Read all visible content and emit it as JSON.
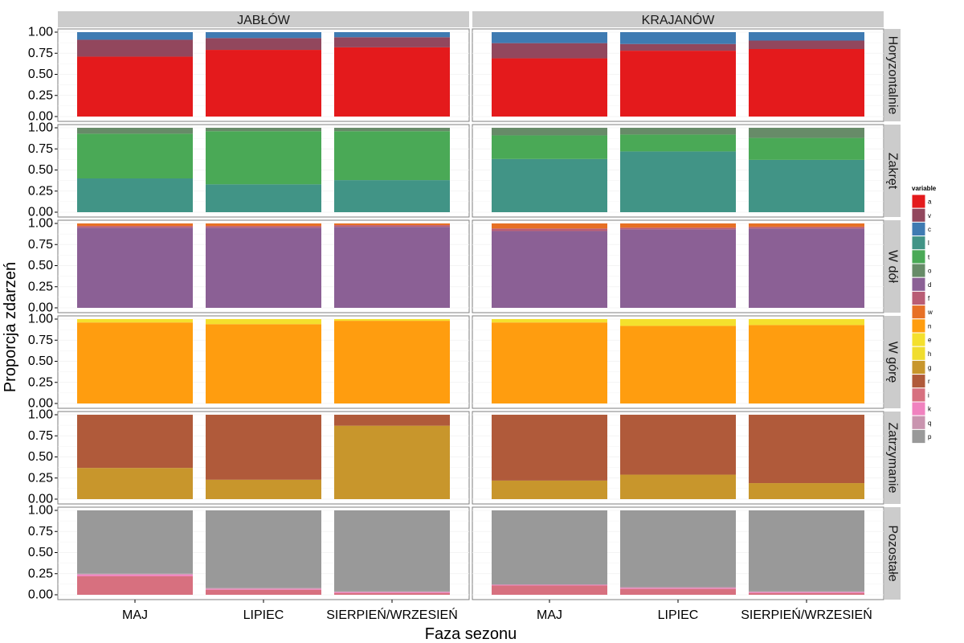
{
  "chart_data": {
    "type": "bar",
    "stacked": true,
    "faceted": true,
    "xlabel": "Faza sezonu",
    "ylabel": "Proporcja zdarzeń",
    "ylim": [
      0,
      1
    ],
    "yticks": [
      "0.00",
      "0.25",
      "0.50",
      "0.75",
      "1.00"
    ],
    "categories": [
      "MAJ",
      "LIPIEC",
      "SIERPIEŃ/WRZESIEŃ"
    ],
    "columns": [
      "JABŁÓW",
      "KRAJANÓW"
    ],
    "rows": [
      "Horyzontalnie",
      "Zakręt",
      "W dół",
      "W górę",
      "Zatrzymanie",
      "Pozostałe"
    ],
    "grid": true,
    "legend": {
      "title": "variable",
      "position": "right",
      "items": [
        {
          "key": "a",
          "color": "#E41A1C"
        },
        {
          "key": "v",
          "color": "#92475D"
        },
        {
          "key": "c",
          "color": "#3F7BB2"
        },
        {
          "key": "l",
          "color": "#419486"
        },
        {
          "key": "t",
          "color": "#4AA956"
        },
        {
          "key": "o",
          "color": "#678B68"
        },
        {
          "key": "d",
          "color": "#8B6095"
        },
        {
          "key": "f",
          "color": "#B95D75"
        },
        {
          "key": "w",
          "color": "#E77025"
        },
        {
          "key": "n",
          "color": "#FF9D0F"
        },
        {
          "key": "e",
          "color": "#F4E02D"
        },
        {
          "key": "h",
          "color": "#F0DD2E"
        },
        {
          "key": "g",
          "color": "#C8962C"
        },
        {
          "key": "r",
          "color": "#B05A3A"
        },
        {
          "key": "i",
          "color": "#D7707F"
        },
        {
          "key": "k",
          "color": "#F082BF"
        },
        {
          "key": "q",
          "color": "#C994AF"
        },
        {
          "key": "p",
          "color": "#999999"
        }
      ]
    },
    "panels": [
      {
        "row": "Horyzontalnie",
        "col": "JABŁÓW",
        "bars": [
          {
            "category": "MAJ",
            "segments": [
              {
                "var": "a",
                "value": 0.71
              },
              {
                "var": "v",
                "value": 0.2
              },
              {
                "var": "c",
                "value": 0.09
              }
            ]
          },
          {
            "category": "LIPIEC",
            "segments": [
              {
                "var": "a",
                "value": 0.79
              },
              {
                "var": "v",
                "value": 0.14
              },
              {
                "var": "c",
                "value": 0.07
              }
            ]
          },
          {
            "category": "SIERPIEŃ/WRZESIEŃ",
            "segments": [
              {
                "var": "a",
                "value": 0.82
              },
              {
                "var": "v",
                "value": 0.12
              },
              {
                "var": "c",
                "value": 0.06
              }
            ]
          }
        ]
      },
      {
        "row": "Horyzontalnie",
        "col": "KRAJANÓW",
        "bars": [
          {
            "category": "MAJ",
            "segments": [
              {
                "var": "a",
                "value": 0.69
              },
              {
                "var": "v",
                "value": 0.18
              },
              {
                "var": "c",
                "value": 0.13
              }
            ]
          },
          {
            "category": "LIPIEC",
            "segments": [
              {
                "var": "a",
                "value": 0.78
              },
              {
                "var": "v",
                "value": 0.08
              },
              {
                "var": "c",
                "value": 0.14
              }
            ]
          },
          {
            "category": "SIERPIEŃ/WRZESIEŃ",
            "segments": [
              {
                "var": "a",
                "value": 0.8
              },
              {
                "var": "v",
                "value": 0.1
              },
              {
                "var": "c",
                "value": 0.1
              }
            ]
          }
        ]
      },
      {
        "row": "Zakręt",
        "col": "JABŁÓW",
        "bars": [
          {
            "category": "MAJ",
            "segments": [
              {
                "var": "l",
                "value": 0.4
              },
              {
                "var": "t",
                "value": 0.53
              },
              {
                "var": "o",
                "value": 0.07
              }
            ]
          },
          {
            "category": "LIPIEC",
            "segments": [
              {
                "var": "l",
                "value": 0.33
              },
              {
                "var": "t",
                "value": 0.63
              },
              {
                "var": "o",
                "value": 0.04
              }
            ]
          },
          {
            "category": "SIERPIEŃ/WRZESIEŃ",
            "segments": [
              {
                "var": "l",
                "value": 0.38
              },
              {
                "var": "t",
                "value": 0.58
              },
              {
                "var": "o",
                "value": 0.04
              }
            ]
          }
        ]
      },
      {
        "row": "Zakręt",
        "col": "KRAJANÓW",
        "bars": [
          {
            "category": "MAJ",
            "segments": [
              {
                "var": "l",
                "value": 0.63
              },
              {
                "var": "t",
                "value": 0.28
              },
              {
                "var": "o",
                "value": 0.09
              }
            ]
          },
          {
            "category": "LIPIEC",
            "segments": [
              {
                "var": "l",
                "value": 0.72
              },
              {
                "var": "t",
                "value": 0.2
              },
              {
                "var": "o",
                "value": 0.08
              }
            ]
          },
          {
            "category": "SIERPIEŃ/WRZESIEŃ",
            "segments": [
              {
                "var": "l",
                "value": 0.62
              },
              {
                "var": "t",
                "value": 0.26
              },
              {
                "var": "o",
                "value": 0.12
              }
            ]
          }
        ]
      },
      {
        "row": "W dół",
        "col": "JABŁÓW",
        "bars": [
          {
            "category": "MAJ",
            "segments": [
              {
                "var": "d",
                "value": 0.95
              },
              {
                "var": "f",
                "value": 0.02
              },
              {
                "var": "w",
                "value": 0.03
              }
            ]
          },
          {
            "category": "LIPIEC",
            "segments": [
              {
                "var": "d",
                "value": 0.95
              },
              {
                "var": "f",
                "value": 0.02
              },
              {
                "var": "w",
                "value": 0.03
              }
            ]
          },
          {
            "category": "SIERPIEŃ/WRZESIEŃ",
            "segments": [
              {
                "var": "d",
                "value": 0.96
              },
              {
                "var": "f",
                "value": 0.02
              },
              {
                "var": "w",
                "value": 0.02
              }
            ]
          }
        ]
      },
      {
        "row": "W dół",
        "col": "KRAJANÓW",
        "bars": [
          {
            "category": "MAJ",
            "segments": [
              {
                "var": "d",
                "value": 0.91
              },
              {
                "var": "f",
                "value": 0.03
              },
              {
                "var": "w",
                "value": 0.06
              }
            ]
          },
          {
            "category": "LIPIEC",
            "segments": [
              {
                "var": "d",
                "value": 0.93
              },
              {
                "var": "f",
                "value": 0.02
              },
              {
                "var": "w",
                "value": 0.05
              }
            ]
          },
          {
            "category": "SIERPIEŃ/WRZESIEŃ",
            "segments": [
              {
                "var": "d",
                "value": 0.94
              },
              {
                "var": "f",
                "value": 0.02
              },
              {
                "var": "w",
                "value": 0.04
              }
            ]
          }
        ]
      },
      {
        "row": "W górę",
        "col": "JABŁÓW",
        "bars": [
          {
            "category": "MAJ",
            "segments": [
              {
                "var": "n",
                "value": 0.96
              },
              {
                "var": "e",
                "value": 0.04
              }
            ]
          },
          {
            "category": "LIPIEC",
            "segments": [
              {
                "var": "n",
                "value": 0.94
              },
              {
                "var": "e",
                "value": 0.06
              }
            ]
          },
          {
            "category": "SIERPIEŃ/WRZESIEŃ",
            "segments": [
              {
                "var": "n",
                "value": 0.98
              },
              {
                "var": "e",
                "value": 0.02
              }
            ]
          }
        ]
      },
      {
        "row": "W górę",
        "col": "KRAJANÓW",
        "bars": [
          {
            "category": "MAJ",
            "segments": [
              {
                "var": "n",
                "value": 0.96
              },
              {
                "var": "e",
                "value": 0.04
              }
            ]
          },
          {
            "category": "LIPIEC",
            "segments": [
              {
                "var": "n",
                "value": 0.92
              },
              {
                "var": "e",
                "value": 0.08
              }
            ]
          },
          {
            "category": "SIERPIEŃ/WRZESIEŃ",
            "segments": [
              {
                "var": "n",
                "value": 0.93
              },
              {
                "var": "e",
                "value": 0.07
              }
            ]
          }
        ]
      },
      {
        "row": "Zatrzymanie",
        "col": "JABŁÓW",
        "bars": [
          {
            "category": "MAJ",
            "segments": [
              {
                "var": "g",
                "value": 0.37
              },
              {
                "var": "r",
                "value": 0.63
              }
            ]
          },
          {
            "category": "LIPIEC",
            "segments": [
              {
                "var": "g",
                "value": 0.23
              },
              {
                "var": "r",
                "value": 0.77
              }
            ]
          },
          {
            "category": "SIERPIEŃ/WRZESIEŃ",
            "segments": [
              {
                "var": "g",
                "value": 0.87
              },
              {
                "var": "r",
                "value": 0.13
              }
            ]
          }
        ]
      },
      {
        "row": "Zatrzymanie",
        "col": "KRAJANÓW",
        "bars": [
          {
            "category": "MAJ",
            "segments": [
              {
                "var": "g",
                "value": 0.22
              },
              {
                "var": "r",
                "value": 0.78
              }
            ]
          },
          {
            "category": "LIPIEC",
            "segments": [
              {
                "var": "g",
                "value": 0.29
              },
              {
                "var": "r",
                "value": 0.71
              }
            ]
          },
          {
            "category": "SIERPIEŃ/WRZESIEŃ",
            "segments": [
              {
                "var": "g",
                "value": 0.19
              },
              {
                "var": "r",
                "value": 0.81
              }
            ]
          }
        ]
      },
      {
        "row": "Pozostałe",
        "col": "JABŁÓW",
        "bars": [
          {
            "category": "MAJ",
            "segments": [
              {
                "var": "i",
                "value": 0.22
              },
              {
                "var": "k",
                "value": 0.02
              },
              {
                "var": "q",
                "value": 0.01
              },
              {
                "var": "p",
                "value": 0.75
              }
            ]
          },
          {
            "category": "LIPIEC",
            "segments": [
              {
                "var": "i",
                "value": 0.06
              },
              {
                "var": "k",
                "value": 0.01
              },
              {
                "var": "q",
                "value": 0.01
              },
              {
                "var": "p",
                "value": 0.92
              }
            ]
          },
          {
            "category": "SIERPIEŃ/WRZESIEŃ",
            "segments": [
              {
                "var": "i",
                "value": 0.02
              },
              {
                "var": "k",
                "value": 0.01
              },
              {
                "var": "q",
                "value": 0.01
              },
              {
                "var": "p",
                "value": 0.96
              }
            ]
          }
        ]
      },
      {
        "row": "Pozostałe",
        "col": "KRAJANÓW",
        "bars": [
          {
            "category": "MAJ",
            "segments": [
              {
                "var": "i",
                "value": 0.11
              },
              {
                "var": "k",
                "value": 0.01
              },
              {
                "var": "p",
                "value": 0.88
              }
            ]
          },
          {
            "category": "LIPIEC",
            "segments": [
              {
                "var": "i",
                "value": 0.07
              },
              {
                "var": "k",
                "value": 0.01
              },
              {
                "var": "q",
                "value": 0.01
              },
              {
                "var": "p",
                "value": 0.91
              }
            ]
          },
          {
            "category": "SIERPIEŃ/WRZESIEŃ",
            "segments": [
              {
                "var": "i",
                "value": 0.02
              },
              {
                "var": "k",
                "value": 0.01
              },
              {
                "var": "q",
                "value": 0.01
              },
              {
                "var": "p",
                "value": 0.96
              }
            ]
          }
        ]
      }
    ]
  }
}
